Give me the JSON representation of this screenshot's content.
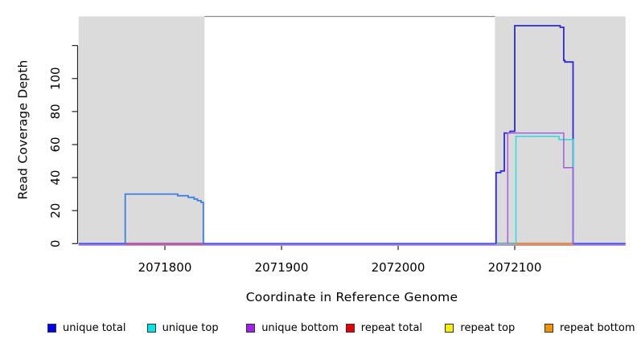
{
  "window_background": "#FFFFFF",
  "chart_data": {
    "type": "line",
    "title": "",
    "xlabel": "Coordinate in Reference Genome",
    "ylabel": "Read Coverage Depth",
    "xlim": [
      2071726,
      2072195
    ],
    "ylim": [
      0,
      137
    ],
    "grid": false,
    "legend_position": "bottom",
    "x_ticks": [
      2071800,
      2071900,
      2072000,
      2072100
    ],
    "y_ticks": [
      0,
      20,
      40,
      60,
      80,
      100,
      120
    ],
    "y_tick_labels": [
      "0",
      "20",
      "40",
      "60",
      "80",
      "100",
      ""
    ],
    "plot_background": "#FFFFFF",
    "box_top_color": "#8A8A8A",
    "shaded_regions": [
      {
        "name": "left-repeat-region",
        "x0": 2071726,
        "x1": 2071834,
        "color": "#DBDBDB"
      },
      {
        "name": "right-repeat-region",
        "x0": 2072083,
        "x1": 2072195,
        "color": "#DBDBDB"
      }
    ],
    "series": [
      {
        "name": "unique total",
        "legend_color": "#0000EE",
        "segments": [
          {
            "desc": "baseline at depth 0 across full range",
            "color": "#4A52E8",
            "w": 1.8,
            "dy": 0,
            "z": 2,
            "points": [
              [
                2071726,
                0
              ],
              [
                2072195,
                0
              ]
            ]
          },
          {
            "desc": "left coverage plateau",
            "color": "#3C7EE8",
            "w": 1.8,
            "dy": 0,
            "z": 6,
            "points": [
              [
                2071766,
                0
              ],
              [
                2071766,
                30
              ],
              [
                2071811,
                30
              ],
              [
                2071811,
                29
              ],
              [
                2071820,
                29
              ],
              [
                2071820,
                28
              ],
              [
                2071825,
                28
              ],
              [
                2071825,
                27
              ],
              [
                2071828,
                27
              ],
              [
                2071828,
                26
              ],
              [
                2071831,
                26
              ],
              [
                2071831,
                25
              ],
              [
                2071833,
                25
              ],
              [
                2071833,
                0
              ]
            ]
          },
          {
            "desc": "right coverage tower",
            "color": "#2B28D9",
            "w": 1.8,
            "dy": 0,
            "z": 6,
            "points": [
              [
                2072084,
                0
              ],
              [
                2072084,
                43
              ],
              [
                2072088,
                43
              ],
              [
                2072088,
                44
              ],
              [
                2072091,
                44
              ],
              [
                2072091,
                67
              ],
              [
                2072096,
                67
              ],
              [
                2072096,
                68
              ],
              [
                2072100,
                68
              ],
              [
                2072100,
                132
              ],
              [
                2072139,
                132
              ],
              [
                2072139,
                131
              ],
              [
                2072142,
                131
              ],
              [
                2072142,
                111
              ],
              [
                2072143,
                111
              ],
              [
                2072143,
                110
              ],
              [
                2072150,
                110
              ],
              [
                2072150,
                0
              ]
            ]
          }
        ]
      },
      {
        "name": "unique top",
        "legend_color": "#00E5E5",
        "segments": [
          {
            "desc": "right peak top-strand coverage",
            "color": "#21E0E0",
            "w": 1.5,
            "dy": 0,
            "z": 7,
            "points": [
              [
                2072101,
                0
              ],
              [
                2072101,
                65
              ],
              [
                2072138,
                65
              ],
              [
                2072138,
                63
              ],
              [
                2072150,
                63
              ],
              [
                2072150,
                0
              ]
            ]
          }
        ]
      },
      {
        "name": "unique bottom",
        "legend_color": "#A020F0",
        "segments": [
          {
            "desc": "baseline at depth 0 across full range",
            "color": "#B08BE6",
            "w": 2.6,
            "dy": 1.4,
            "z": 1,
            "points": [
              [
                2071726,
                0
              ],
              [
                2072195,
                0
              ]
            ]
          },
          {
            "desc": "right peak bottom-strand coverage",
            "color": "#A55CE0",
            "w": 1.5,
            "dy": 0,
            "z": 8,
            "points": [
              [
                2072094,
                0
              ],
              [
                2072094,
                67
              ],
              [
                2072142,
                67
              ],
              [
                2072142,
                46
              ],
              [
                2072150,
                46
              ],
              [
                2072150,
                0
              ]
            ]
          }
        ]
      },
      {
        "name": "repeat total",
        "legend_color": "#E60000",
        "segments": [
          {
            "desc": "zero-depth segment under left plateau",
            "color": "#E0515E",
            "w": 1.6,
            "dy": 0.6,
            "z": 3,
            "points": [
              [
                2071766,
                0
              ],
              [
                2071833,
                0
              ]
            ]
          }
        ]
      },
      {
        "name": "repeat top",
        "legend_color": "#F2F200",
        "segments": [
          {
            "desc": "zero-depth segment left of right tower (renders greenish)",
            "color": "#7FCE7F",
            "w": 1.6,
            "dy": 0.4,
            "z": 4,
            "points": [
              [
                2072084,
                0
              ],
              [
                2072100,
                0
              ]
            ]
          }
        ]
      },
      {
        "name": "repeat bottom",
        "legend_color": "#F29400",
        "segments": [
          {
            "desc": "zero-depth segment under right tower",
            "color": "#FF9100",
            "w": 2.2,
            "dy": 0.6,
            "z": 5,
            "points": [
              [
                2072100,
                0
              ],
              [
                2072150,
                0
              ]
            ]
          }
        ]
      }
    ]
  },
  "legend": {
    "items": [
      {
        "label": "unique total",
        "color": "#0000EE"
      },
      {
        "label": "unique top",
        "color": "#00E5E5"
      },
      {
        "label": "unique bottom",
        "color": "#A020F0"
      },
      {
        "label": "repeat total",
        "color": "#E60000"
      },
      {
        "label": "repeat top",
        "color": "#F2F200"
      },
      {
        "label": "repeat bottom",
        "color": "#F29400"
      }
    ]
  }
}
